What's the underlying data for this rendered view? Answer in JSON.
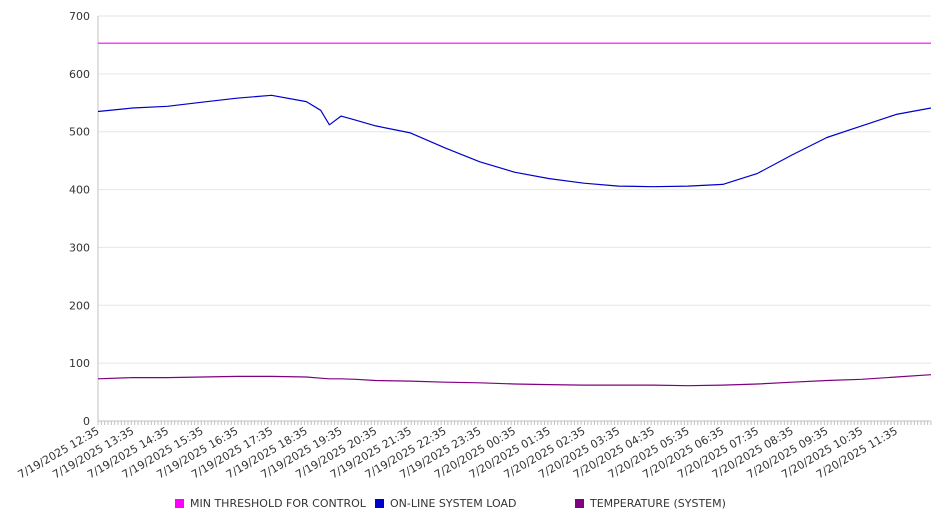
{
  "chart_data": {
    "type": "line",
    "title": "",
    "xlabel": "",
    "ylabel": "",
    "ylim": [
      0,
      700
    ],
    "yticks": [
      0,
      100,
      200,
      300,
      400,
      500,
      600,
      700
    ],
    "grid": true,
    "legend_position": "bottom",
    "x_tick_labels": [
      "7/19/2025 12:35",
      "7/19/2025 13:35",
      "7/19/2025 14:35",
      "7/19/2025 15:35",
      "7/19/2025 16:35",
      "7/19/2025 17:35",
      "7/19/2025 18:35",
      "7/19/2025 19:35",
      "7/19/2025 20:35",
      "7/19/2025 21:35",
      "7/19/2025 22:35",
      "7/19/2025 23:35",
      "7/20/2025 00:35",
      "7/20/2025 01:35",
      "7/20/2025 02:35",
      "7/20/2025 03:35",
      "7/20/2025 04:35",
      "7/20/2025 05:35",
      "7/20/2025 06:35",
      "7/20/2025 07:35",
      "7/20/2025 08:35",
      "7/20/2025 09:35",
      "7/20/2025 10:35",
      "7/20/2025 11:35"
    ],
    "x": [
      "7/19/2025 12:35",
      "7/19/2025 13:35",
      "7/19/2025 14:35",
      "7/19/2025 15:35",
      "7/19/2025 16:35",
      "7/19/2025 17:35",
      "7/19/2025 18:35",
      "7/19/2025 19:00",
      "7/19/2025 19:15",
      "7/19/2025 19:35",
      "7/19/2025 20:00",
      "7/19/2025 20:35",
      "7/19/2025 21:35",
      "7/19/2025 22:35",
      "7/19/2025 23:35",
      "7/20/2025 00:35",
      "7/20/2025 01:35",
      "7/20/2025 02:35",
      "7/20/2025 03:35",
      "7/20/2025 04:35",
      "7/20/2025 05:35",
      "7/20/2025 06:35",
      "7/20/2025 07:35",
      "7/20/2025 08:35",
      "7/20/2025 09:35",
      "7/20/2025 10:35",
      "7/20/2025 11:35",
      "7/20/2025 12:35"
    ],
    "series": [
      {
        "name": "MIN THRESHOLD FOR CONTROL",
        "color": "#ff00ff",
        "values": [
          653,
          653,
          653,
          653,
          653,
          653,
          653,
          653,
          653,
          653,
          653,
          653,
          653,
          653,
          653,
          653,
          653,
          653,
          653,
          653,
          653,
          653,
          653,
          653,
          653,
          653,
          653,
          653
        ]
      },
      {
        "name": "ON-LINE SYSTEM LOAD",
        "color": "#0000cc",
        "values": [
          535,
          541,
          544,
          551,
          558,
          563,
          552,
          537,
          512,
          527,
          520,
          510,
          498,
          472,
          448,
          430,
          419,
          411,
          406,
          405,
          406,
          409,
          428,
          460,
          490,
          510,
          530,
          541
        ]
      },
      {
        "name": "TEMPERATURE (SYSTEM)",
        "color": "#800080",
        "values": [
          73,
          75,
          75,
          76,
          77,
          77,
          76,
          74,
          73,
          73,
          72,
          70,
          69,
          67,
          66,
          64,
          63,
          62,
          62,
          62,
          61,
          62,
          64,
          67,
          70,
          72,
          76,
          80
        ]
      }
    ]
  }
}
